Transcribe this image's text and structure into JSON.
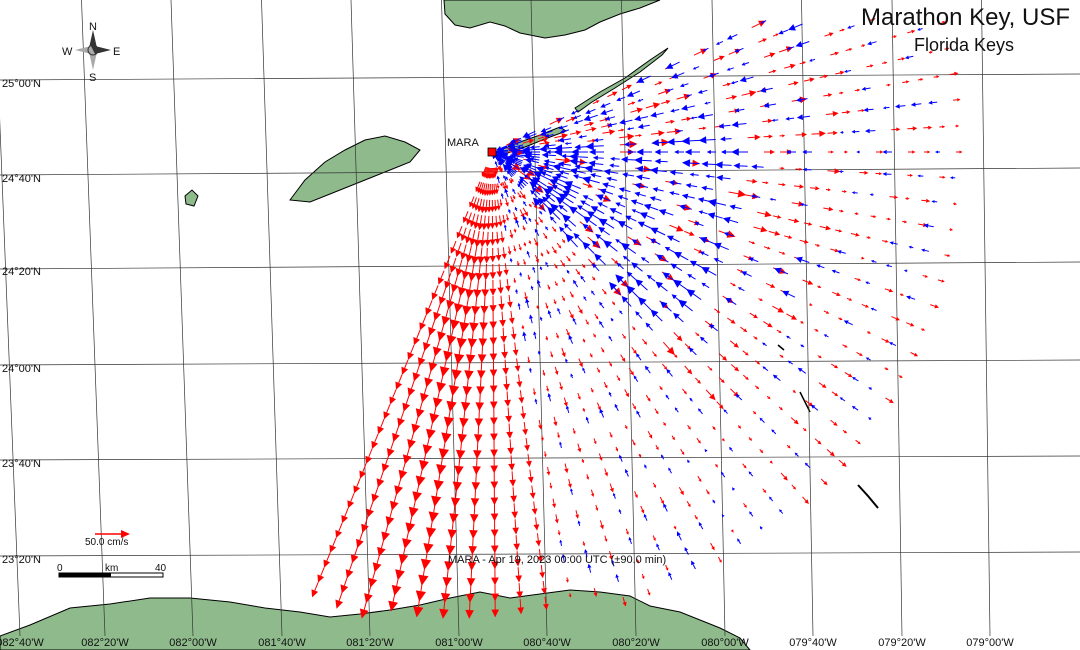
{
  "map": {
    "title": "Marathon Key, USF",
    "subtitle": "Florida Keys",
    "station_label": "MARA",
    "timestamp_caption": "MARA - Apr 19, 2023 00:00 UTC (±90.0 min)",
    "scale_vector_label": "50.0 cm/s",
    "scale_bar": {
      "labels": [
        "0",
        "km",
        "40"
      ]
    },
    "compass": {
      "n": "N",
      "s": "S",
      "e": "E",
      "w": "W"
    },
    "lat_labels": [
      "25°00'N",
      "24°40'N",
      "24°20'N",
      "24°00'N",
      "23°40'N",
      "23°20'N"
    ],
    "lon_labels": [
      "082°40'W",
      "082°20'W",
      "082°00'W",
      "081°40'W",
      "081°20'W",
      "081°00'W",
      "080°40'W",
      "080°20'W",
      "080°00'W",
      "079°40'W",
      "079°20'W",
      "079°00'W"
    ],
    "colors": {
      "land": "#8fbb8c",
      "land_outline": "#000000",
      "grid": "#333333",
      "vector_toward": "#0000ff",
      "vector_away": "#ff0000",
      "station": "#ff0000"
    }
  }
}
